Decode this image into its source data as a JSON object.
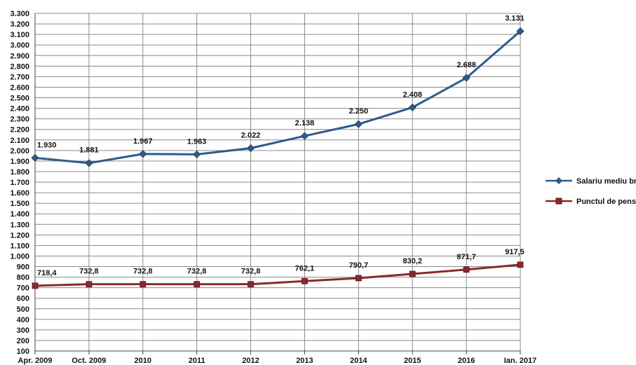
{
  "chart_data": {
    "type": "line",
    "title": "",
    "xlabel": "",
    "ylabel": "",
    "categories": [
      "Apr. 2009",
      "Oct. 2009",
      "2010",
      "2011",
      "2012",
      "2013",
      "2014",
      "2015",
      "2016",
      "Ian. 2017"
    ],
    "ylim": [
      100,
      3300
    ],
    "ytick_step": 100,
    "yticks": [
      "100",
      "200",
      "300",
      "400",
      "500",
      "600",
      "700",
      "800",
      "900",
      "1.000",
      "1.100",
      "1.200",
      "1.300",
      "1.400",
      "1.500",
      "1.600",
      "1.700",
      "1.800",
      "1.900",
      "2.000",
      "2.100",
      "2.200",
      "2.300",
      "2.400",
      "2.500",
      "2.600",
      "2.700",
      "2.800",
      "2.900",
      "3.000",
      "3.100",
      "3.200",
      "3.300"
    ],
    "grid": true,
    "legend_position": "right",
    "series": [
      {
        "name": "Salariu mediu brut",
        "color": "#2e5b8a",
        "marker": "diamond",
        "values": [
          1930,
          1881,
          1967,
          1963,
          2022,
          2138,
          2250,
          2408,
          2688,
          3131
        ],
        "labels": [
          "1.930",
          "1.881",
          "1.967",
          "1.963",
          "2.022",
          "2.138",
          "2.250",
          "2.408",
          "2.688",
          "3.131"
        ]
      },
      {
        "name": "Punctul de pensie",
        "color": "#8b2a2a",
        "marker": "square",
        "values": [
          718.4,
          732.8,
          732.8,
          732.8,
          732.8,
          762.1,
          790.7,
          830.2,
          871.7,
          917.5
        ],
        "labels": [
          "718,4",
          "732,8",
          "732,8",
          "732,8",
          "732,8",
          "762,1",
          "790,7",
          "830,2",
          "871,7",
          "917,5"
        ]
      }
    ]
  }
}
